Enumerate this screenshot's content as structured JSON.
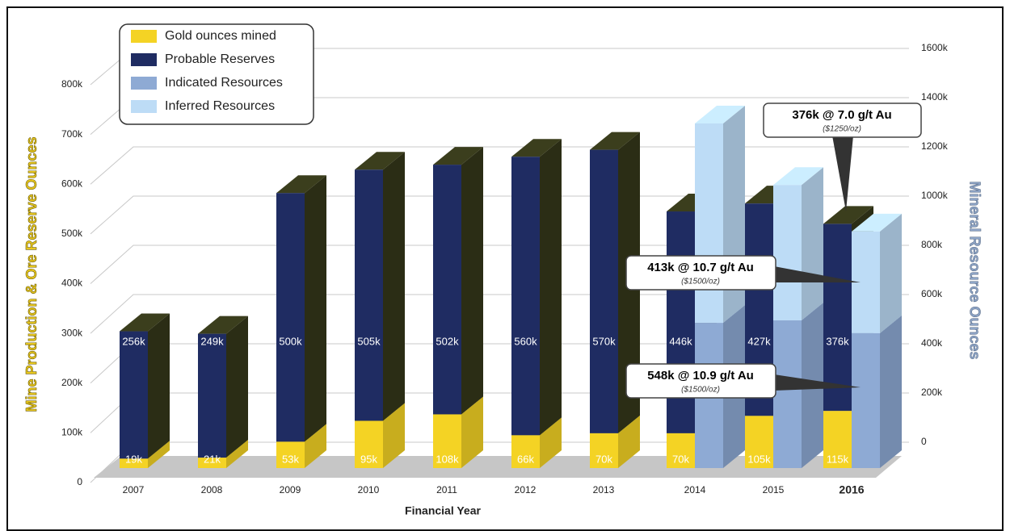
{
  "chart_data": {
    "type": "bar3d",
    "xlabel": "Financial Year",
    "ylabel": "Mine Production & Ore Reserve Ounces",
    "y2label": "Mineral Resource Ounces",
    "categories": [
      "2007",
      "2008",
      "2009",
      "2010",
      "2011",
      "2012",
      "2013",
      "2014",
      "2015",
      "2016"
    ],
    "stacked": true,
    "legend": "upper left",
    "grid": true,
    "series": [
      {
        "name": "Gold ounces mined",
        "color": "#f4d324",
        "axis": "y",
        "values": [
          19000,
          21000,
          53000,
          95000,
          108000,
          66000,
          70000,
          70000,
          105000,
          115000
        ],
        "value_labels": [
          "19k",
          "21k",
          "53k",
          "95k",
          "108k",
          "66k",
          "70k",
          "70k",
          "105k",
          "115k"
        ]
      },
      {
        "name": "Probable Reserves",
        "color": "#1f2c62",
        "axis": "y",
        "values": [
          256000,
          249000,
          500000,
          505000,
          502000,
          560000,
          570000,
          446000,
          427000,
          376000
        ],
        "value_labels": [
          "256k",
          "249k",
          "500k",
          "505k",
          "502k",
          "560k",
          "570k",
          "446k",
          "427k",
          "376k"
        ]
      },
      {
        "name": "Indicated Resources",
        "color": "#8eaad4",
        "axis": "y2",
        "values": [
          null,
          null,
          null,
          null,
          null,
          null,
          null,
          590000,
          600000,
          548000
        ]
      },
      {
        "name": "Inferred Resources",
        "color": "#bddcf6",
        "axis": "y2",
        "values": [
          null,
          null,
          null,
          null,
          null,
          null,
          null,
          810000,
          550000,
          413000
        ]
      }
    ],
    "ylim": [
      0,
      800000
    ],
    "yticks": [
      0,
      {
        "value": 100000,
        "label": "100k"
      },
      {
        "value": 200000,
        "label": "200k"
      },
      {
        "value": 300000,
        "label": "300k"
      },
      {
        "value": 400000,
        "label": "400k"
      },
      {
        "value": 500000,
        "label": "500k"
      },
      {
        "value": 600000,
        "label": "600k"
      },
      {
        "value": 700000,
        "label": "700k"
      },
      {
        "value": 800000,
        "label": "800k"
      }
    ],
    "y2lim": [
      0,
      1600000
    ],
    "y2ticks": [
      0,
      {
        "value": 200000,
        "label": "200k"
      },
      {
        "value": 400000,
        "label": "400k"
      },
      {
        "value": 600000,
        "label": "600k"
      },
      {
        "value": 800000,
        "label": "800k"
      },
      {
        "value": 1000000,
        "label": "1000k"
      },
      {
        "value": 1200000,
        "label": "1200k"
      },
      {
        "value": 1400000,
        "label": "1400k"
      },
      {
        "value": 1600000,
        "label": "1600k"
      }
    ],
    "annotations": [
      {
        "text": "376k @ 7.0 g/t Au",
        "subtext": "($1250/oz)"
      },
      {
        "text": "413k @ 10.7 g/t Au",
        "subtext": "($1500/oz)"
      },
      {
        "text": "548k @ 10.9 g/t Au",
        "subtext": "($1500/oz)"
      }
    ]
  }
}
